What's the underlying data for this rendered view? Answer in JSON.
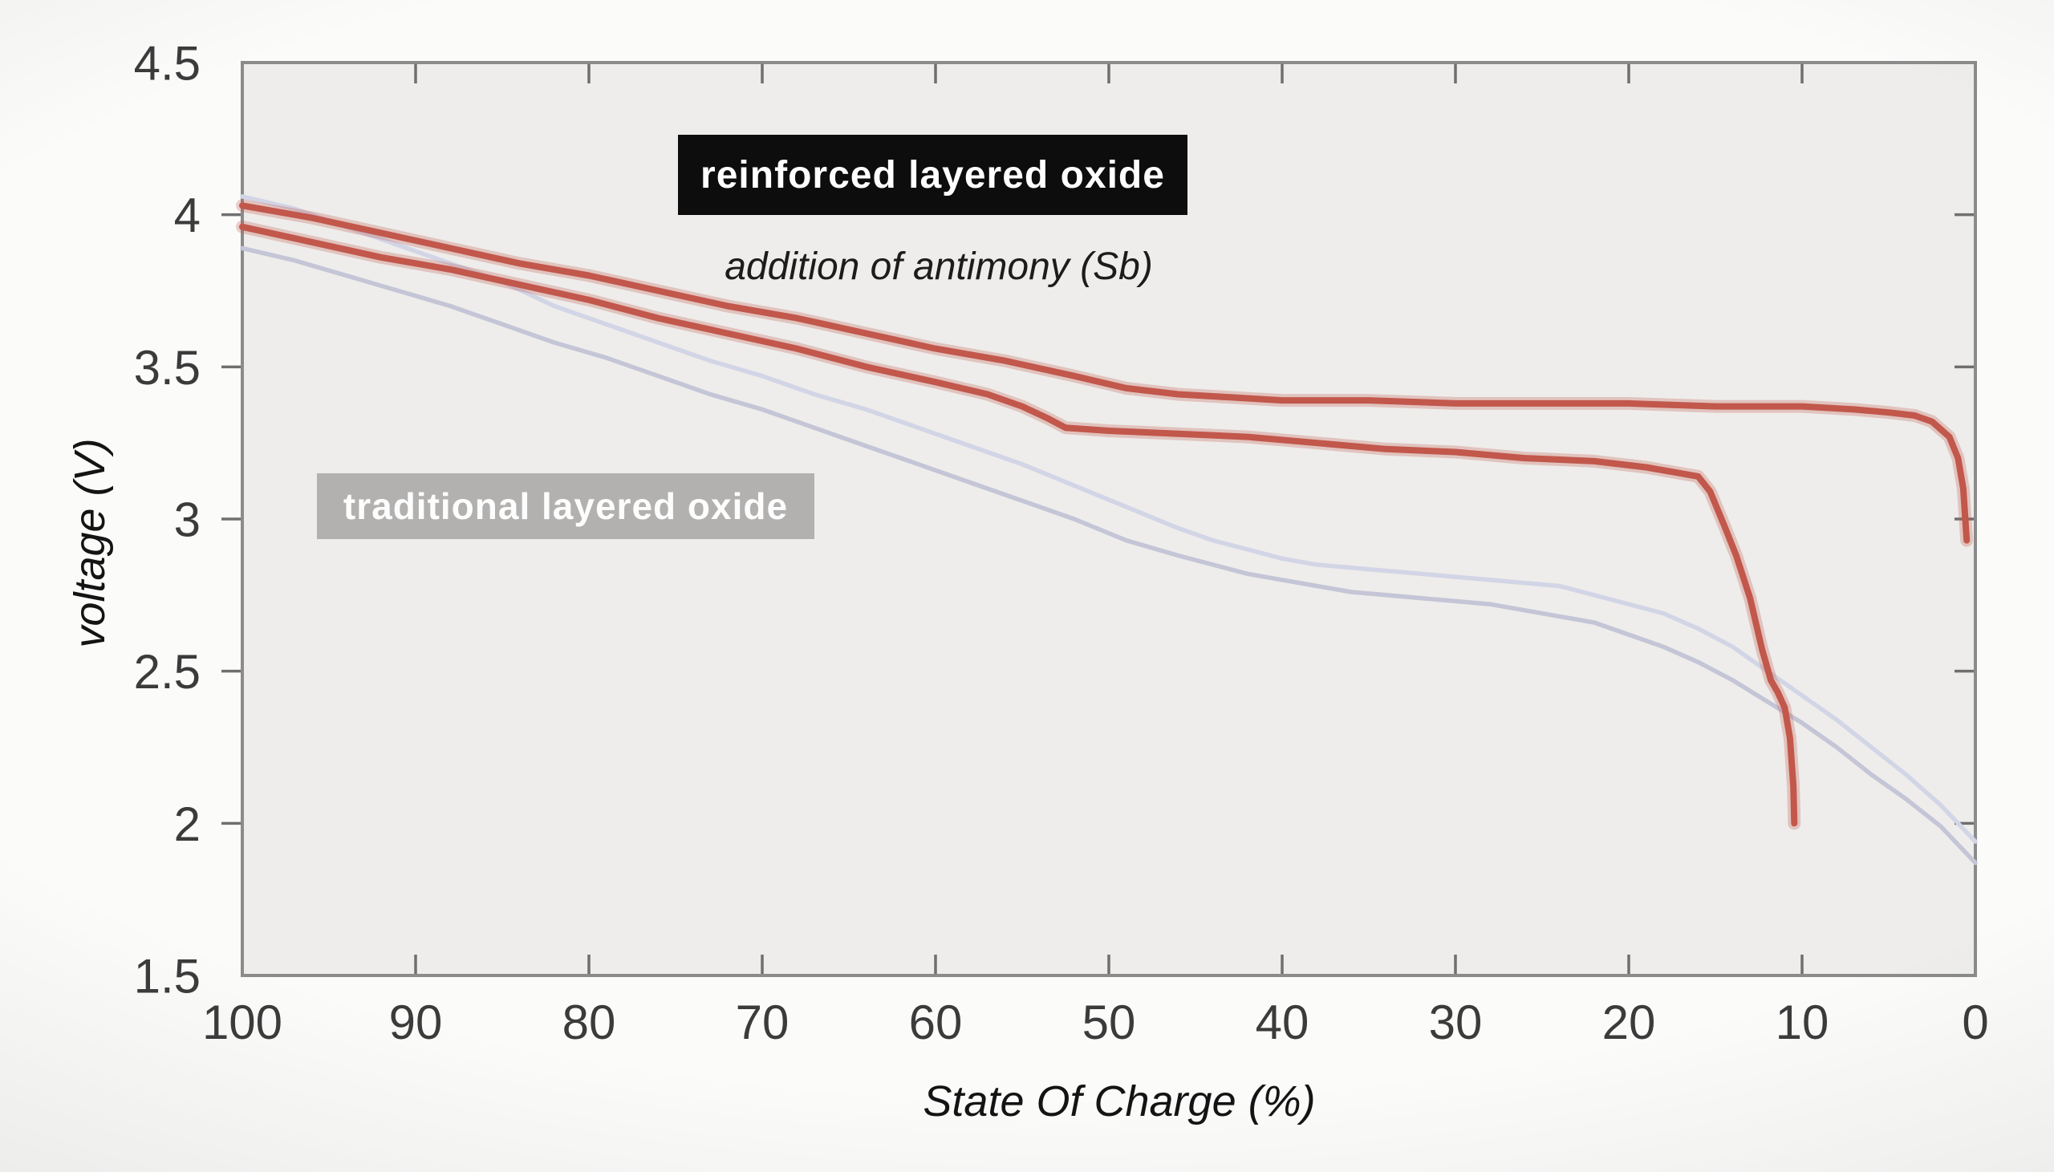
{
  "page": {
    "background": "#fbfbfa",
    "plot_background": "#eeedeb"
  },
  "colors": {
    "axis_border": "#8b8b8b",
    "tick": "#6f6f6f",
    "tick_label": "#3b3b3b",
    "reinforced_red": "#c2574b",
    "traditional_light_upper": "#d2d5e6",
    "traditional_light_lower": "#c4c5d6",
    "reinforced_box_bg": "#0d0d0d",
    "reinforced_box_text": "#ffffff",
    "traditional_box_bg": "#b2b1b0",
    "traditional_box_text": "#fdfdfd"
  },
  "annotations": {
    "reinforced_label": "reinforced layered oxide",
    "reinforced_subtitle": "addition of antimony (Sb)",
    "traditional_label": "traditional layered oxide"
  },
  "chart_data": {
    "type": "line",
    "title": "",
    "xlabel": "State Of Charge (%)",
    "ylabel": "voltage (V)",
    "grid": false,
    "legend_position": "in-plot annotation boxes",
    "x_axis": {
      "min": 0,
      "max": 100,
      "reversed": true,
      "ticks": [
        100,
        90,
        80,
        70,
        60,
        50,
        40,
        30,
        20,
        10,
        0
      ]
    },
    "y_axis": {
      "min": 1.5,
      "max": 4.5,
      "ticks": [
        4.5,
        4,
        3.5,
        3,
        2.5,
        2,
        1.5
      ]
    },
    "series": [
      {
        "name": "traditional layered oxide (upper curve)",
        "color": "#d2d5e6",
        "width": 5.5,
        "halo": 0,
        "points": [
          [
            100,
            4.06
          ],
          [
            97,
            4.02
          ],
          [
            94,
            3.96
          ],
          [
            91,
            3.9
          ],
          [
            88,
            3.84
          ],
          [
            85,
            3.78
          ],
          [
            82,
            3.7
          ],
          [
            79,
            3.64
          ],
          [
            76,
            3.58
          ],
          [
            73,
            3.52
          ],
          [
            70,
            3.47
          ],
          [
            67,
            3.41
          ],
          [
            64,
            3.36
          ],
          [
            61,
            3.3
          ],
          [
            58,
            3.24
          ],
          [
            55,
            3.18
          ],
          [
            52,
            3.11
          ],
          [
            49,
            3.04
          ],
          [
            46,
            2.97
          ],
          [
            44,
            2.93
          ],
          [
            42,
            2.9
          ],
          [
            40,
            2.87
          ],
          [
            38,
            2.85
          ],
          [
            36,
            2.84
          ],
          [
            34,
            2.83
          ],
          [
            32,
            2.82
          ],
          [
            30,
            2.81
          ],
          [
            28,
            2.8
          ],
          [
            26,
            2.79
          ],
          [
            24,
            2.78
          ],
          [
            22,
            2.75
          ],
          [
            20,
            2.72
          ],
          [
            18,
            2.69
          ],
          [
            16,
            2.64
          ],
          [
            14,
            2.58
          ],
          [
            12,
            2.5
          ],
          [
            10,
            2.42
          ],
          [
            8,
            2.34
          ],
          [
            6,
            2.25
          ],
          [
            4,
            2.16
          ],
          [
            2,
            2.06
          ],
          [
            0,
            1.94
          ]
        ]
      },
      {
        "name": "traditional layered oxide (lower curve)",
        "color": "#c4c5d6",
        "width": 5.5,
        "halo": 0,
        "points": [
          [
            100,
            3.89
          ],
          [
            97,
            3.85
          ],
          [
            94,
            3.8
          ],
          [
            91,
            3.75
          ],
          [
            88,
            3.7
          ],
          [
            85,
            3.64
          ],
          [
            82,
            3.58
          ],
          [
            79,
            3.53
          ],
          [
            76,
            3.47
          ],
          [
            73,
            3.41
          ],
          [
            70,
            3.36
          ],
          [
            67,
            3.3
          ],
          [
            64,
            3.24
          ],
          [
            61,
            3.18
          ],
          [
            58,
            3.12
          ],
          [
            55,
            3.06
          ],
          [
            52,
            3.0
          ],
          [
            49,
            2.93
          ],
          [
            46,
            2.88
          ],
          [
            44,
            2.85
          ],
          [
            42,
            2.82
          ],
          [
            40,
            2.8
          ],
          [
            38,
            2.78
          ],
          [
            36,
            2.76
          ],
          [
            34,
            2.75
          ],
          [
            32,
            2.74
          ],
          [
            30,
            2.73
          ],
          [
            28,
            2.72
          ],
          [
            26,
            2.7
          ],
          [
            24,
            2.68
          ],
          [
            22,
            2.66
          ],
          [
            20,
            2.62
          ],
          [
            18,
            2.58
          ],
          [
            16,
            2.53
          ],
          [
            14,
            2.47
          ],
          [
            12,
            2.4
          ],
          [
            10,
            2.33
          ],
          [
            8,
            2.25
          ],
          [
            6,
            2.16
          ],
          [
            4,
            2.08
          ],
          [
            2,
            1.99
          ],
          [
            0,
            1.87
          ]
        ]
      },
      {
        "name": "reinforced layered oxide with Sb (upper curve)",
        "color": "#c2574b",
        "width": 8,
        "halo": 16,
        "points": [
          [
            100,
            4.03
          ],
          [
            96,
            3.99
          ],
          [
            92,
            3.94
          ],
          [
            88,
            3.89
          ],
          [
            84,
            3.84
          ],
          [
            80,
            3.8
          ],
          [
            76,
            3.75
          ],
          [
            72,
            3.7
          ],
          [
            68,
            3.66
          ],
          [
            64,
            3.61
          ],
          [
            60,
            3.56
          ],
          [
            56,
            3.52
          ],
          [
            52,
            3.47
          ],
          [
            49,
            3.43
          ],
          [
            46,
            3.41
          ],
          [
            43,
            3.4
          ],
          [
            40,
            3.39
          ],
          [
            35,
            3.39
          ],
          [
            30,
            3.38
          ],
          [
            25,
            3.38
          ],
          [
            20,
            3.38
          ],
          [
            15,
            3.37
          ],
          [
            10,
            3.37
          ],
          [
            7,
            3.36
          ],
          [
            5,
            3.35
          ],
          [
            3.5,
            3.34
          ],
          [
            2.5,
            3.32
          ],
          [
            1.5,
            3.27
          ],
          [
            1,
            3.2
          ],
          [
            0.7,
            3.1
          ],
          [
            0.5,
            2.93
          ]
        ]
      },
      {
        "name": "reinforced layered oxide with Sb (lower curve)",
        "color": "#c2574b",
        "width": 8,
        "halo": 16,
        "points": [
          [
            100,
            3.96
          ],
          [
            96,
            3.91
          ],
          [
            92,
            3.86
          ],
          [
            88,
            3.82
          ],
          [
            84,
            3.77
          ],
          [
            80,
            3.72
          ],
          [
            76,
            3.66
          ],
          [
            72,
            3.61
          ],
          [
            68,
            3.56
          ],
          [
            64,
            3.5
          ],
          [
            60,
            3.45
          ],
          [
            57,
            3.41
          ],
          [
            55,
            3.37
          ],
          [
            53.5,
            3.33
          ],
          [
            52.5,
            3.3
          ],
          [
            50,
            3.29
          ],
          [
            46,
            3.28
          ],
          [
            42,
            3.27
          ],
          [
            38,
            3.25
          ],
          [
            34,
            3.23
          ],
          [
            30,
            3.22
          ],
          [
            26,
            3.2
          ],
          [
            22,
            3.19
          ],
          [
            19,
            3.17
          ],
          [
            17,
            3.15
          ],
          [
            16,
            3.14
          ],
          [
            15.3,
            3.09
          ],
          [
            14.5,
            2.98
          ],
          [
            13.8,
            2.88
          ],
          [
            13,
            2.74
          ],
          [
            12.3,
            2.57
          ],
          [
            11.8,
            2.47
          ],
          [
            11.4,
            2.43
          ],
          [
            11,
            2.38
          ],
          [
            10.7,
            2.28
          ],
          [
            10.5,
            2.12
          ],
          [
            10.45,
            2.0
          ]
        ]
      }
    ]
  }
}
